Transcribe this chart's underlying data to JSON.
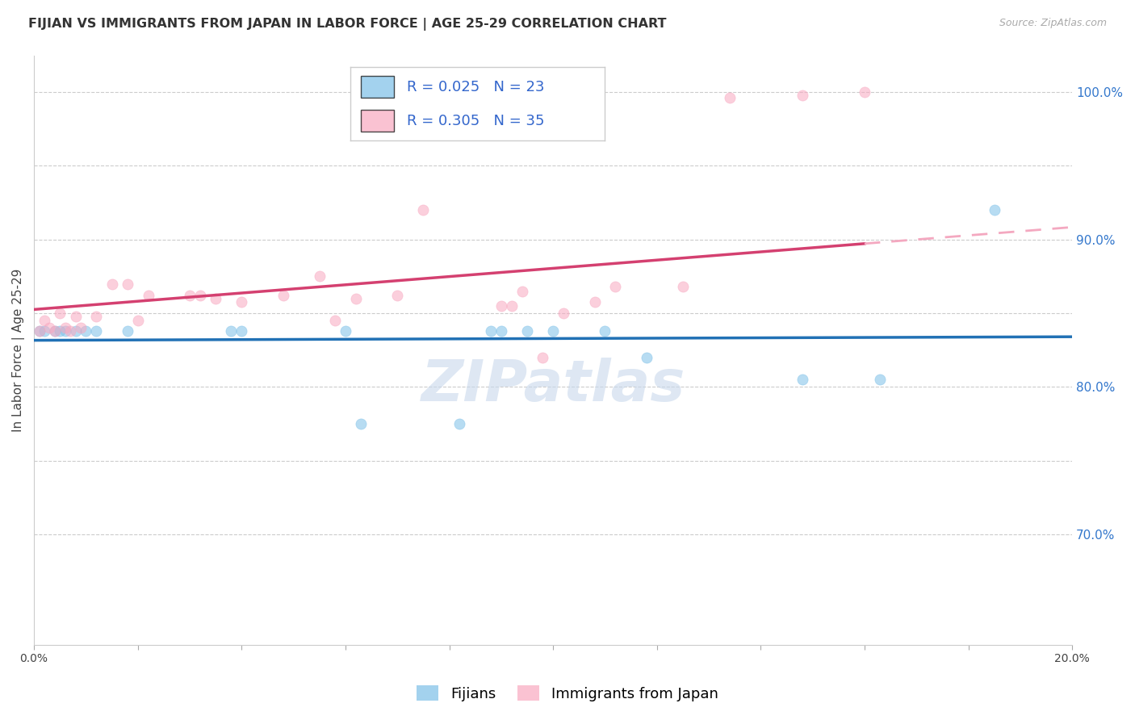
{
  "title": "FIJIAN VS IMMIGRANTS FROM JAPAN IN LABOR FORCE | AGE 25-29 CORRELATION CHART",
  "source": "Source: ZipAtlas.com",
  "ylabel_label": "In Labor Force | Age 25-29",
  "xlim": [
    0.0,
    0.2
  ],
  "ylim": [
    0.625,
    1.025
  ],
  "y_ticks_right": [
    0.7,
    0.8,
    0.9,
    1.0
  ],
  "gridline_y": [
    1.0,
    0.95,
    0.9,
    0.85,
    0.8,
    0.75,
    0.7
  ],
  "fijian_color": "#7dc0e8",
  "japan_color": "#f9a8c0",
  "fijian_R": 0.025,
  "fijian_N": 23,
  "japan_R": 0.305,
  "japan_N": 35,
  "fijian_scatter_x": [
    0.001,
    0.002,
    0.004,
    0.005,
    0.006,
    0.008,
    0.01,
    0.012,
    0.018,
    0.038,
    0.04,
    0.06,
    0.063,
    0.082,
    0.088,
    0.09,
    0.095,
    0.1,
    0.11,
    0.118,
    0.148,
    0.163,
    0.185
  ],
  "fijian_scatter_y": [
    0.838,
    0.838,
    0.838,
    0.838,
    0.838,
    0.838,
    0.838,
    0.838,
    0.838,
    0.838,
    0.838,
    0.838,
    0.775,
    0.775,
    0.838,
    0.838,
    0.838,
    0.838,
    0.838,
    0.82,
    0.805,
    0.805,
    0.92
  ],
  "japan_scatter_x": [
    0.001,
    0.002,
    0.003,
    0.004,
    0.005,
    0.006,
    0.007,
    0.008,
    0.009,
    0.012,
    0.015,
    0.018,
    0.02,
    0.022,
    0.03,
    0.032,
    0.035,
    0.04,
    0.048,
    0.055,
    0.058,
    0.062,
    0.07,
    0.075,
    0.09,
    0.092,
    0.094,
    0.098,
    0.102,
    0.108,
    0.112,
    0.125,
    0.134,
    0.148,
    0.16
  ],
  "japan_scatter_y": [
    0.838,
    0.845,
    0.84,
    0.838,
    0.85,
    0.84,
    0.838,
    0.848,
    0.84,
    0.848,
    0.87,
    0.87,
    0.845,
    0.862,
    0.862,
    0.862,
    0.86,
    0.858,
    0.862,
    0.875,
    0.845,
    0.86,
    0.862,
    0.92,
    0.855,
    0.855,
    0.865,
    0.82,
    0.85,
    0.858,
    0.868,
    0.868,
    0.996,
    0.998,
    1.0
  ],
  "fijian_line_color": "#2171b5",
  "japan_line_color": "#d44070",
  "japan_line_dashed_color": "#f4a8c0",
  "watermark": "ZIPatlas",
  "legend_fijian_label": "Fijians",
  "legend_japan_label": "Immigrants from Japan",
  "title_fontsize": 11.5,
  "axis_label_fontsize": 11,
  "tick_fontsize": 10,
  "legend_fontsize": 13,
  "source_fontsize": 9,
  "marker_size": 90,
  "R_N_color": "#3366cc"
}
